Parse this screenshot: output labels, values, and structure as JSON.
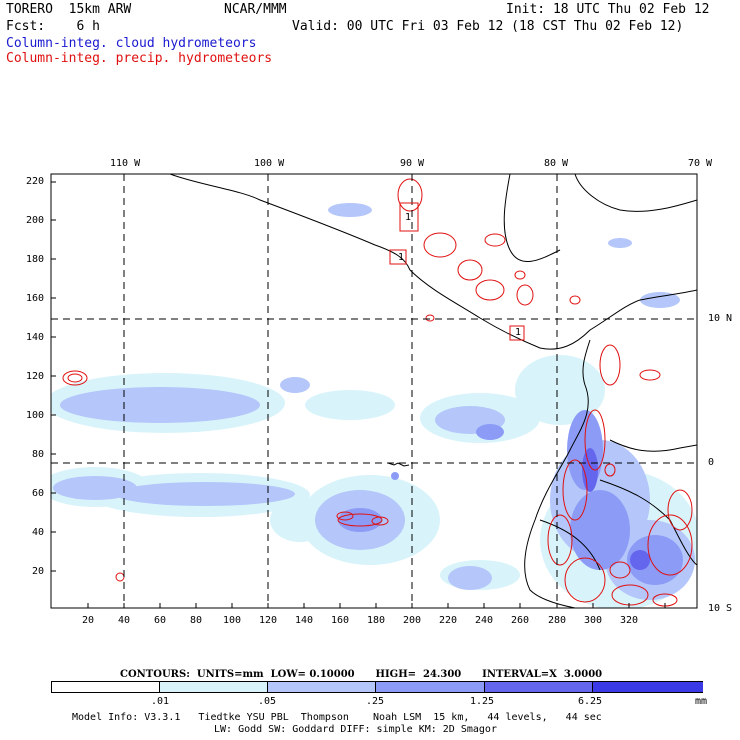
{
  "header": {
    "model": "TORERO  15km ARW",
    "org": "NCAR/MMM",
    "init": "Init: 18 UTC Thu 02 Feb 12",
    "fcst": "Fcst:    6 h",
    "valid": "Valid: 00 UTC Fri 03 Feb 12 (18 CST Thu 02 Feb 12)",
    "field1": "Column-integ. cloud hydrometeors",
    "field2": "Column-integ. precip. hydrometeors"
  },
  "colors": {
    "cloud": "#1a1ad0",
    "precip": "#e01010",
    "land": "#000000"
  },
  "map": {
    "top_lon_labels": [
      "110 W",
      "100 W",
      "90 W",
      "80 W",
      "70 W"
    ],
    "right_lat_labels": [
      "10 N",
      "0",
      "10 S"
    ],
    "y_ticks": [
      "220",
      "200",
      "180",
      "160",
      "140",
      "120",
      "100",
      "80",
      "60",
      "40",
      "20"
    ],
    "x_ticks": [
      "20",
      "40",
      "60",
      "80",
      "100",
      "120",
      "140",
      "160",
      "180",
      "200",
      "220",
      "240",
      "260",
      "280",
      "300",
      "320"
    ],
    "box_labels": [
      "1",
      "1",
      "1"
    ]
  },
  "contours": {
    "text": "CONTOURS:  UNITS=mm  LOW= 0.10000      HIGH=  24.300      INTERVAL=X  3.0000"
  },
  "colorbar": {
    "levels": [
      ".01",
      ".05",
      ".25",
      "1.25",
      "6.25"
    ],
    "units": "mm",
    "colors": [
      "#ffffff",
      "#d8f4fa",
      "#b4c6fa",
      "#8c9cf6",
      "#6466ee",
      "#3a3ae6"
    ]
  },
  "footer": {
    "line1": "Model Info: V3.3.1   Tiedtke YSU PBL  Thompson    Noah LSM  15 km,   44 levels,   44 sec",
    "line2": "LW: Godd SW: Goddard DIFF: simple KM: 2D Smagor"
  }
}
